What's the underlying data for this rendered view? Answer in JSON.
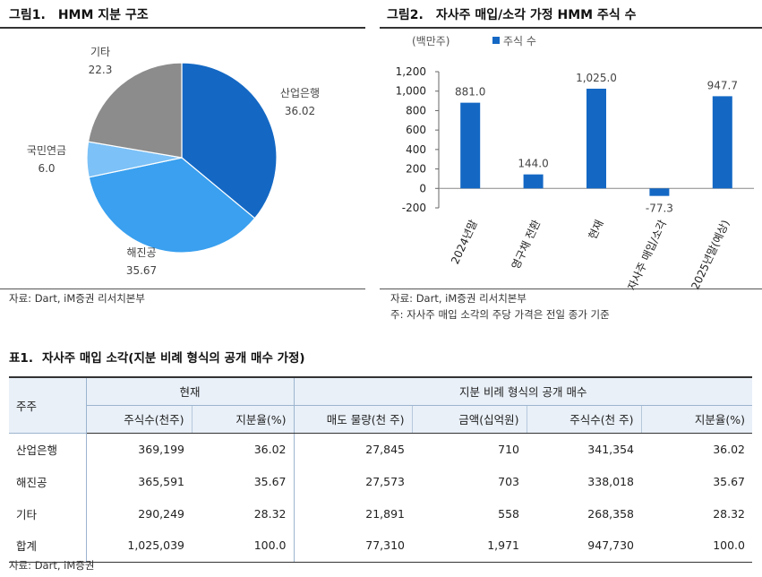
{
  "figure1": {
    "number": "그림1.",
    "title": "HMM 지분 구조",
    "source": "자료: Dart, iM증권 리서치본부"
  },
  "figure2": {
    "number": "그림2.",
    "title": "자사주 매입/소각 가정 HMM 주식 수",
    "unit": "(백만주)",
    "legend": "주식 수",
    "source": "자료: Dart, iM증권 리서치본부",
    "note": "주: 자사주 매입 소각의 주당 가격은 전일 종가 기준"
  },
  "chart_data": [
    {
      "type": "pie",
      "title": "HMM 지분 구조",
      "slices": [
        {
          "label": "산업은행",
          "value": 36.02,
          "value_label": "36.02",
          "color": "#1468c4"
        },
        {
          "label": "해진공",
          "value": 35.67,
          "value_label": "35.67",
          "color": "#3aa0ef"
        },
        {
          "label": "국민연금",
          "value": 6.0,
          "value_label": "6.0",
          "color": "#7cc1f7"
        },
        {
          "label": "기타",
          "value": 22.3,
          "value_label": "22.3",
          "color": "#8c8c8c"
        }
      ]
    },
    {
      "type": "bar",
      "title": "자사주 매입/소각 가정 HMM 주식 수",
      "ylabel": "(백만주)",
      "ylim": [
        -200,
        1200
      ],
      "yticks": [
        -200,
        0,
        200,
        400,
        600,
        800,
        1000,
        1200
      ],
      "ytick_labels": [
        "-200",
        "0",
        "200",
        "400",
        "600",
        "800",
        "1,000",
        "1,200"
      ],
      "categories": [
        "2024년말",
        "영구채 전환",
        "현재",
        "자사주 매입/소각",
        "2025년말(예상)"
      ],
      "series": [
        {
          "name": "주식 수",
          "color": "#1468c4",
          "values": [
            881.0,
            144.0,
            1025.0,
            -77.3,
            947.7
          ],
          "value_labels": [
            "881.0",
            "144.0",
            "1,025.0",
            "-77.3",
            "947.7"
          ]
        }
      ]
    }
  ],
  "table": {
    "number": "표1.",
    "title": "자사주 매입 소각(지분 비례 형식의 공개 매수 가정)",
    "corner": "주주",
    "group_current": "현재",
    "group_tender": "지분 비례 형식의 공개 매수",
    "columns": [
      "주식수(천주)",
      "지분율(%)",
      "매도 물량(천 주)",
      "금액(십억원)",
      "주식수(천 주)",
      "지분율(%)"
    ],
    "rows": [
      {
        "name": "산업은행",
        "cells": [
          "369,199",
          "36.02",
          "27,845",
          "710",
          "341,354",
          "36.02"
        ]
      },
      {
        "name": "해진공",
        "cells": [
          "365,591",
          "35.67",
          "27,573",
          "703",
          "338,018",
          "35.67"
        ]
      },
      {
        "name": "기타",
        "cells": [
          "290,249",
          "28.32",
          "21,891",
          "558",
          "268,358",
          "28.32"
        ]
      },
      {
        "name": "합계",
        "cells": [
          "1,025,039",
          "100.0",
          "77,310",
          "1,971",
          "947,730",
          "100.0"
        ]
      }
    ],
    "source": "자료: Dart, iM증권"
  }
}
